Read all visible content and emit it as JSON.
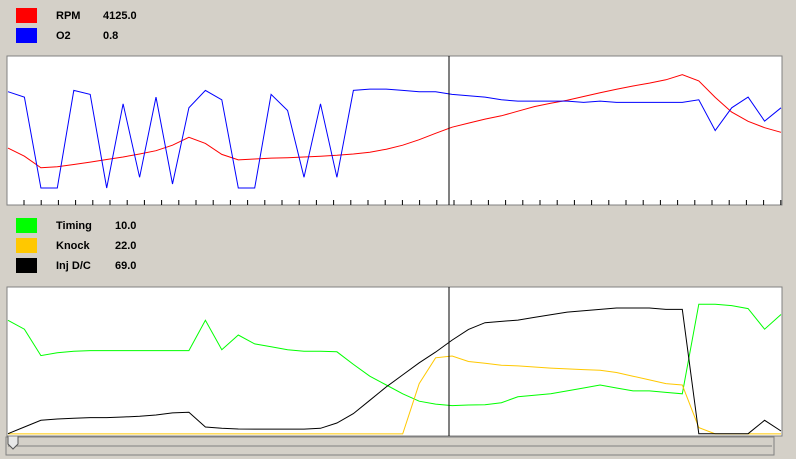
{
  "chart_data": [
    {
      "type": "line",
      "series": [
        {
          "name": "RPM",
          "color": "#ff0000",
          "readout": "4125.0",
          "ylim": [
            0,
            8000
          ],
          "values": [
            3040,
            2600,
            1970,
            2030,
            2150,
            2280,
            2420,
            2560,
            2720,
            2900,
            3200,
            3630,
            3300,
            2700,
            2400,
            2450,
            2500,
            2520,
            2560,
            2600,
            2650,
            2720,
            2820,
            2980,
            3200,
            3500,
            3850,
            4180,
            4400,
            4620,
            4800,
            5050,
            5300,
            5480,
            5650,
            5850,
            6050,
            6250,
            6420,
            6580,
            6760,
            7040,
            6700,
            5800,
            5000,
            4500,
            4150,
            3900
          ]
        },
        {
          "name": "O2",
          "color": "#0000ff",
          "readout": "0.8",
          "ylim": [
            0,
            1.1
          ],
          "values": [
            0.84,
            0.8,
            0.12,
            0.12,
            0.85,
            0.82,
            0.12,
            0.75,
            0.2,
            0.8,
            0.15,
            0.72,
            0.85,
            0.78,
            0.12,
            0.12,
            0.82,
            0.7,
            0.2,
            0.75,
            0.2,
            0.85,
            0.86,
            0.86,
            0.85,
            0.84,
            0.84,
            0.82,
            0.81,
            0.8,
            0.78,
            0.77,
            0.77,
            0.77,
            0.77,
            0.76,
            0.77,
            0.76,
            0.76,
            0.76,
            0.76,
            0.76,
            0.78,
            0.55,
            0.72,
            0.8,
            0.62,
            0.72
          ]
        }
      ]
    },
    {
      "type": "line",
      "series": [
        {
          "name": "Timing",
          "color": "#00ff00",
          "readout": "10.0",
          "ylim": [
            0,
            50
          ],
          "values": [
            39,
            36,
            27,
            28,
            28.5,
            28.7,
            28.7,
            28.7,
            28.7,
            28.7,
            28.7,
            28.7,
            39,
            29,
            34,
            31,
            30,
            29,
            28.5,
            28.5,
            28.3,
            24,
            20,
            17,
            14,
            11.5,
            10.5,
            10,
            10.2,
            10.3,
            11,
            13,
            13.5,
            14,
            15,
            16,
            17,
            16,
            15,
            15,
            14.5,
            14,
            44.5,
            44.5,
            44,
            43,
            36,
            41
          ]
        },
        {
          "name": "Knock",
          "color": "#ffc800",
          "readout": "22.0",
          "ylim": [
            0,
            40
          ],
          "values": [
            0.3,
            0.3,
            0.3,
            0.3,
            0.3,
            0.3,
            0.3,
            0.3,
            0.3,
            0.3,
            0.3,
            0.3,
            0.3,
            0.3,
            0.3,
            0.3,
            0.3,
            0.3,
            0.3,
            0.3,
            0.3,
            0.3,
            0.3,
            0.3,
            0.3,
            14,
            21,
            21.5,
            20,
            19.5,
            19,
            18.8,
            18.5,
            18.2,
            18,
            17.8,
            17.6,
            17,
            16,
            15,
            14,
            13.6,
            2,
            0.3,
            0.3,
            0.3,
            0.3,
            0.3
          ]
        },
        {
          "name": "Inj D/C",
          "color": "#000000",
          "readout": "69.0",
          "ylim": [
            0,
            110
          ],
          "values": [
            1,
            6,
            11,
            12,
            12.5,
            13,
            13,
            13.5,
            14,
            15,
            16.5,
            17,
            6,
            5,
            4.5,
            4.4,
            4.4,
            4.4,
            4.4,
            5,
            9,
            16,
            26,
            36,
            45,
            54,
            62,
            71,
            79,
            84,
            85,
            86,
            88,
            90,
            92,
            93,
            94,
            95,
            95,
            95,
            94,
            94,
            1,
            1,
            1,
            1,
            11,
            3
          ]
        }
      ]
    }
  ]
}
